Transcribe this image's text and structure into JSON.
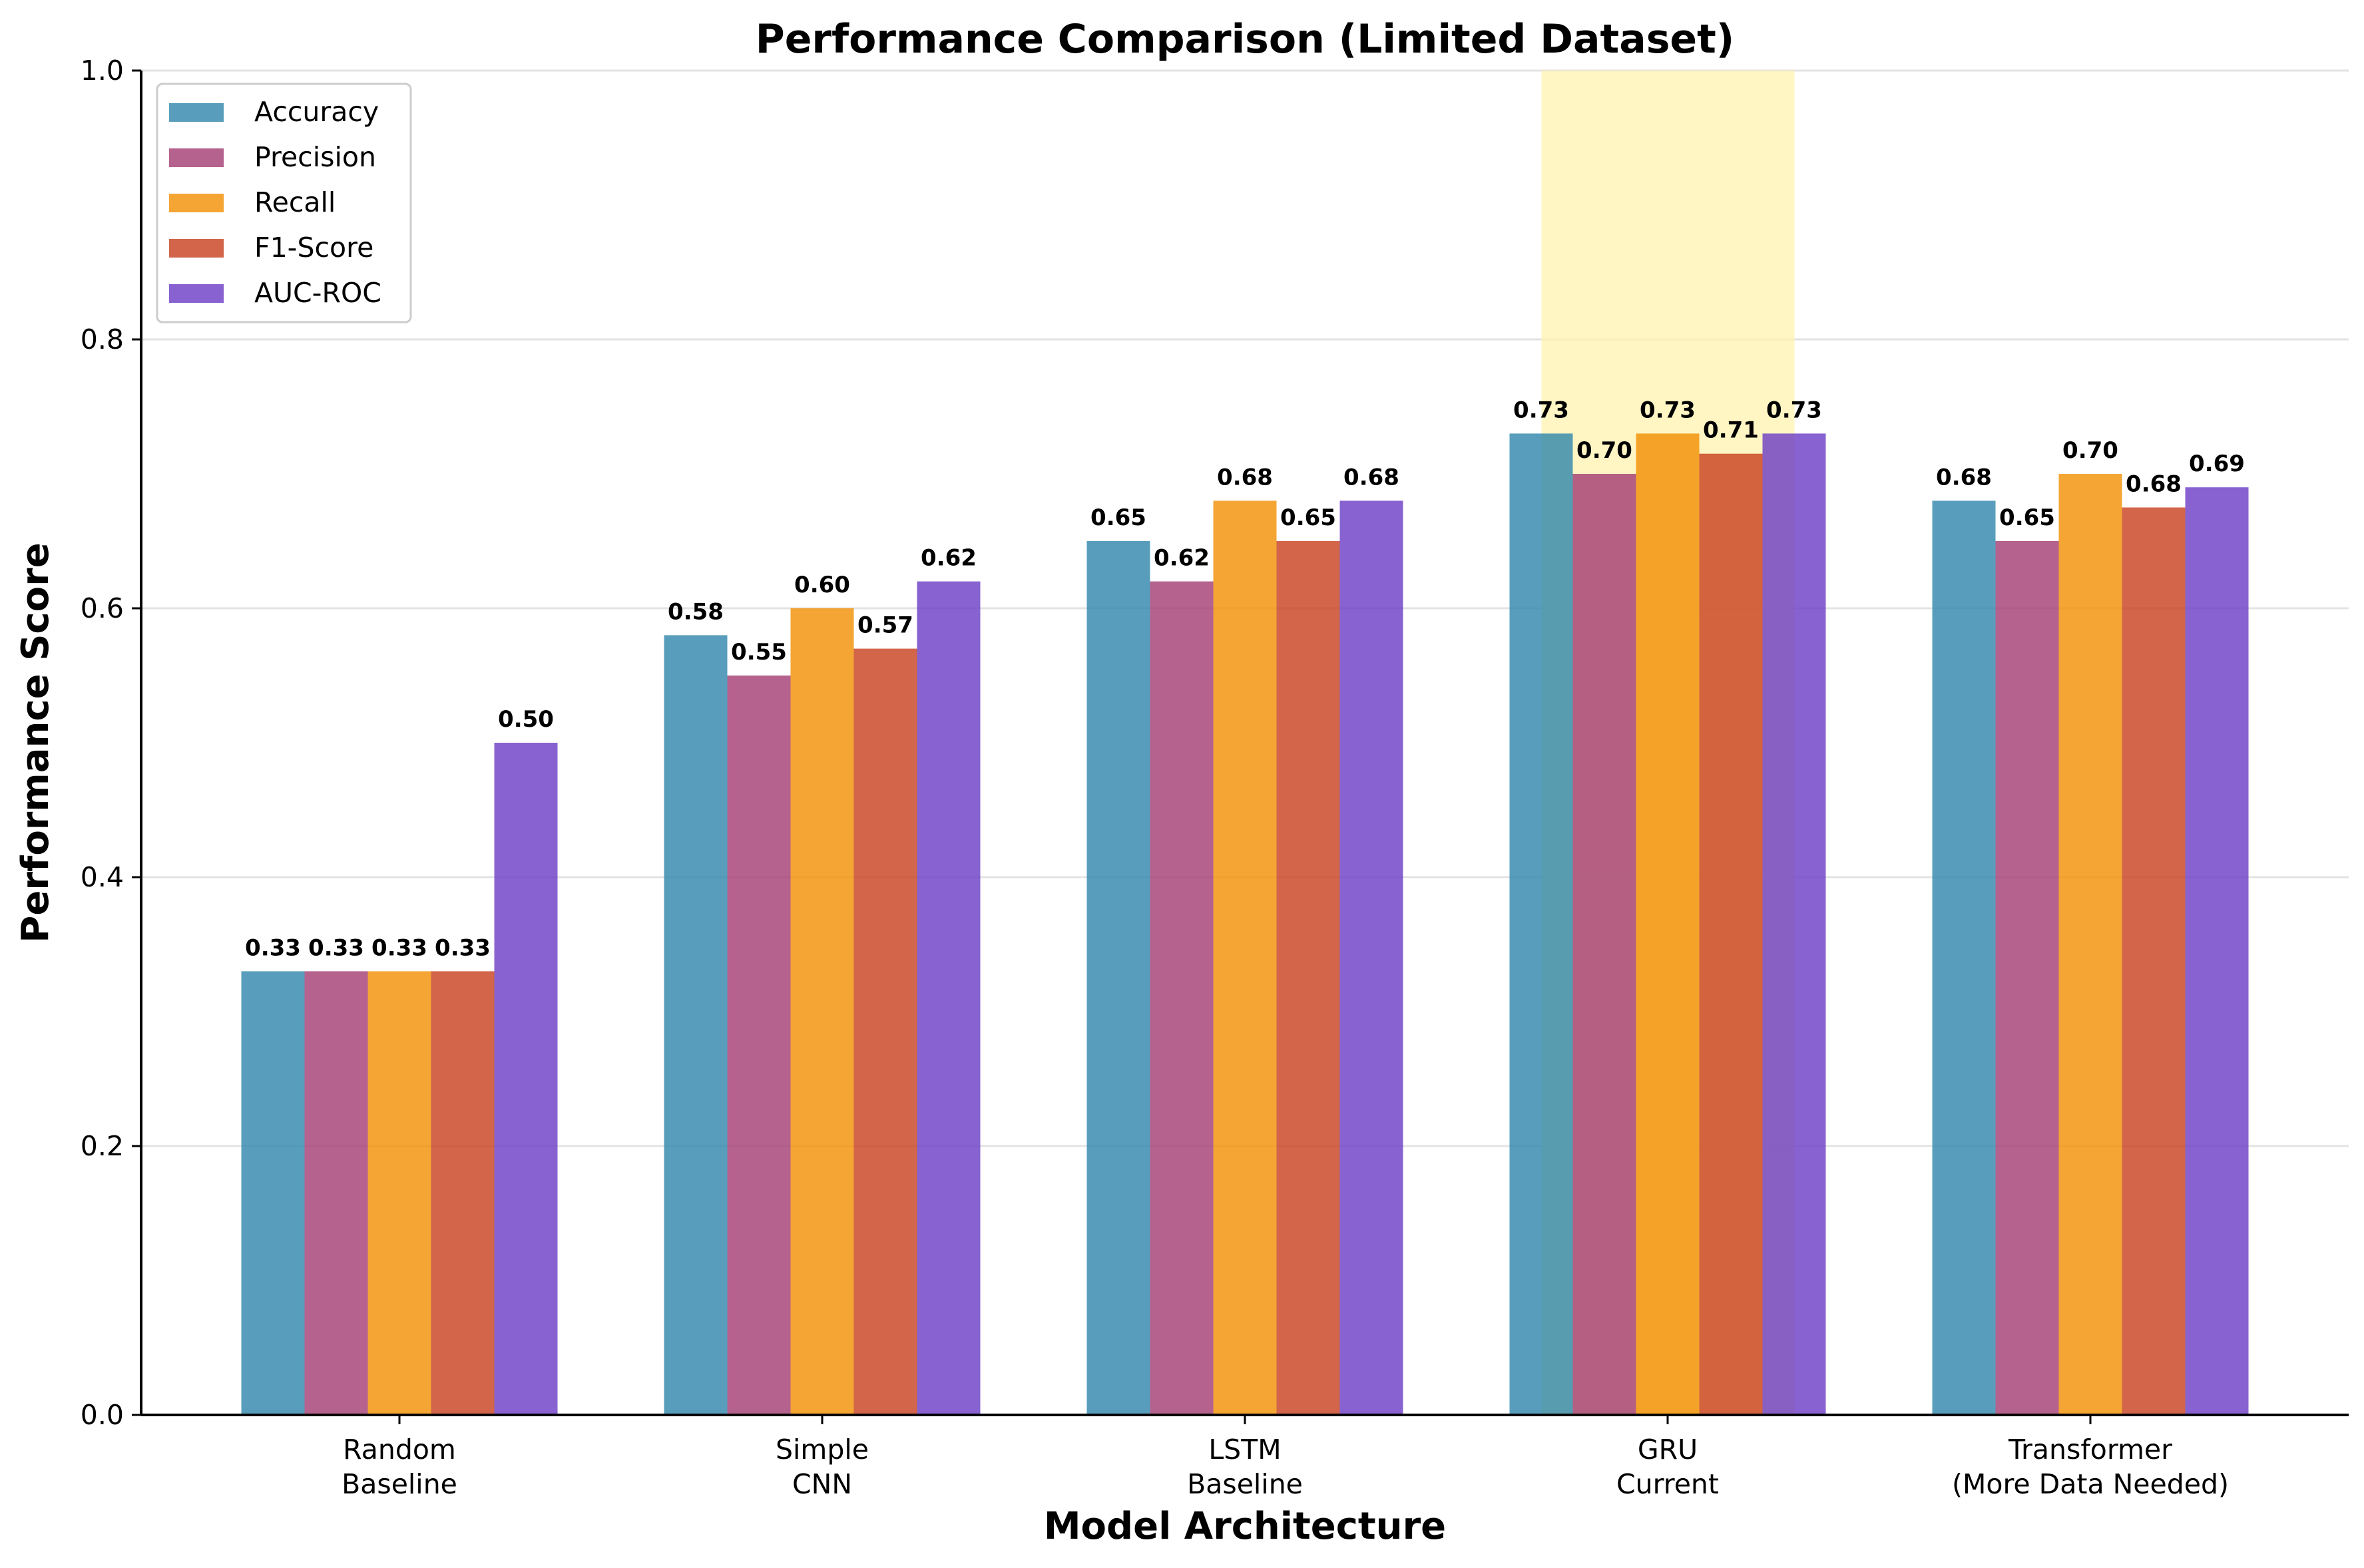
{
  "chart_data": {
    "type": "bar",
    "title": "Performance Comparison (Limited Dataset)",
    "xlabel": "Model Architecture",
    "ylabel": "Performance Score",
    "ylim": [
      0,
      1.0
    ],
    "yticks": [
      0.0,
      0.2,
      0.4,
      0.6,
      0.8,
      1.0
    ],
    "ytick_labels": [
      "0.0",
      "0.2",
      "0.4",
      "0.6",
      "0.8",
      "1.0"
    ],
    "grid": "horizontal",
    "legend_position": "top-left",
    "categories": [
      [
        "Random",
        "Baseline"
      ],
      [
        "Simple",
        "CNN"
      ],
      [
        "LSTM",
        "Baseline"
      ],
      [
        "GRU",
        "Current"
      ],
      [
        "Transformer",
        "(More Data Needed)"
      ]
    ],
    "highlight_category": 3,
    "highlight_color": "#fff3b0",
    "series": [
      {
        "name": "Accuracy",
        "color": "#2e86ab",
        "values": [
          0.33,
          0.58,
          0.65,
          0.73,
          0.68
        ],
        "labels": [
          "0.33",
          "0.58",
          "0.65",
          "0.73",
          "0.68"
        ]
      },
      {
        "name": "Precision",
        "color": "#a23b72",
        "values": [
          0.33,
          0.55,
          0.62,
          0.7,
          0.65
        ],
        "labels": [
          "0.33",
          "0.55",
          "0.62",
          "0.70",
          "0.65"
        ]
      },
      {
        "name": "Recall",
        "color": "#f18f01",
        "values": [
          0.33,
          0.6,
          0.68,
          0.73,
          0.7
        ],
        "labels": [
          "0.33",
          "0.60",
          "0.68",
          "0.73",
          "0.70"
        ]
      },
      {
        "name": "F1-Score",
        "color": "#c73e1d",
        "values": [
          0.33,
          0.57,
          0.65,
          0.715,
          0.675
        ],
        "labels": [
          "0.33",
          "0.57",
          "0.65",
          "0.71",
          "0.68"
        ]
      },
      {
        "name": "AUC-ROC",
        "color": "#6a3bc4",
        "values": [
          0.5,
          0.62,
          0.68,
          0.73,
          0.69
        ],
        "labels": [
          "0.50",
          "0.62",
          "0.68",
          "0.73",
          "0.69"
        ]
      }
    ]
  }
}
